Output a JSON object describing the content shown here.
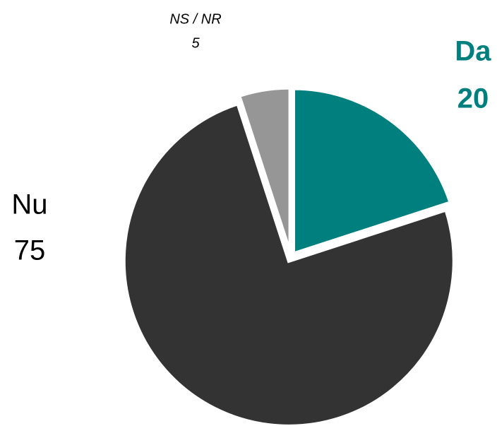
{
  "chart_data": {
    "type": "pie",
    "categories": [
      "Da",
      "Nu",
      "NS / NR"
    ],
    "values": [
      20,
      75,
      5
    ],
    "colors": [
      "#007f7f",
      "#333333",
      "#969696"
    ]
  }
}
